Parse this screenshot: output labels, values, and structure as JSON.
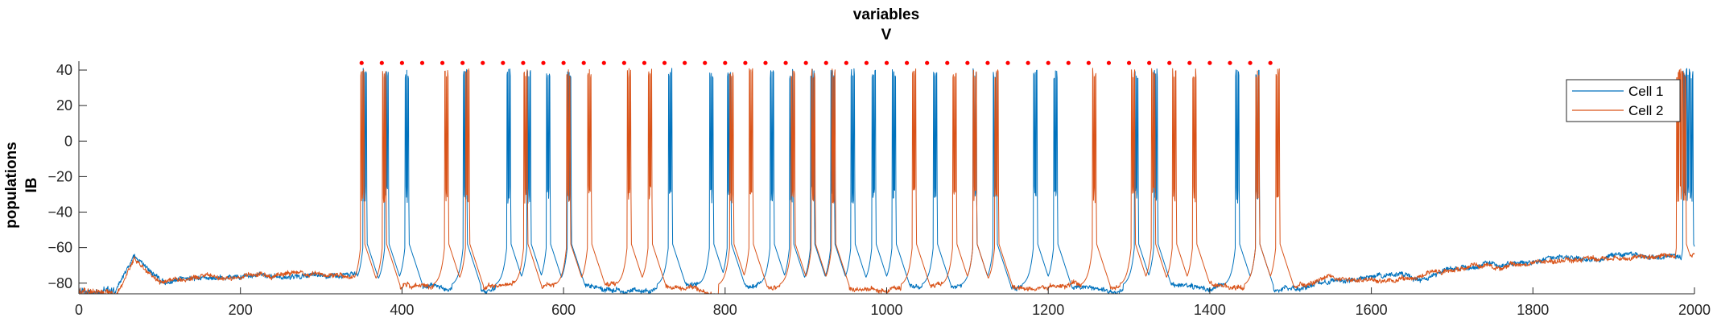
{
  "chart_data": {
    "type": "line",
    "title": "variables",
    "subtitle": "V",
    "ylabel_line1": "populations",
    "ylabel_line2": "IB",
    "xlabel": "",
    "xlim": [
      0,
      2000
    ],
    "ylim": [
      -86,
      45
    ],
    "xticks": [
      0,
      200,
      400,
      600,
      800,
      1000,
      1200,
      1400,
      1600,
      1800,
      2000
    ],
    "yticks": [
      -80,
      -60,
      -40,
      -20,
      0,
      20,
      40
    ],
    "grid": false,
    "legend_position": "top-right",
    "series": [
      {
        "name": "Cell 1",
        "color": "#0072BD",
        "spike_times": [
          352,
          379,
          404,
          476,
          530,
          555,
          579,
          605,
          730,
          781,
          803,
          856,
          880,
          906,
          931,
          956,
          982,
          1007,
          1058,
          1107,
          1132,
          1182,
          1207,
          1307,
          1331,
          1432,
          1457,
          1986,
          1990,
          1994
        ],
        "baseline": -80
      },
      {
        "name": "Cell 2",
        "color": "#D95319",
        "spike_times": [
          349,
          376,
          453,
          479,
          551,
          604,
          630,
          679,
          705,
          806,
          830,
          882,
          907,
          932,
          1032,
          1082,
          1107,
          1134,
          1255,
          1303,
          1328,
          1354,
          1379,
          1457,
          1482,
          1978,
          1981,
          1985
        ],
        "baseline": -80
      }
    ],
    "marker_series": {
      "color": "#FF0000",
      "y": 44,
      "x_start": 350,
      "x_end": 1478,
      "period": 25
    }
  }
}
